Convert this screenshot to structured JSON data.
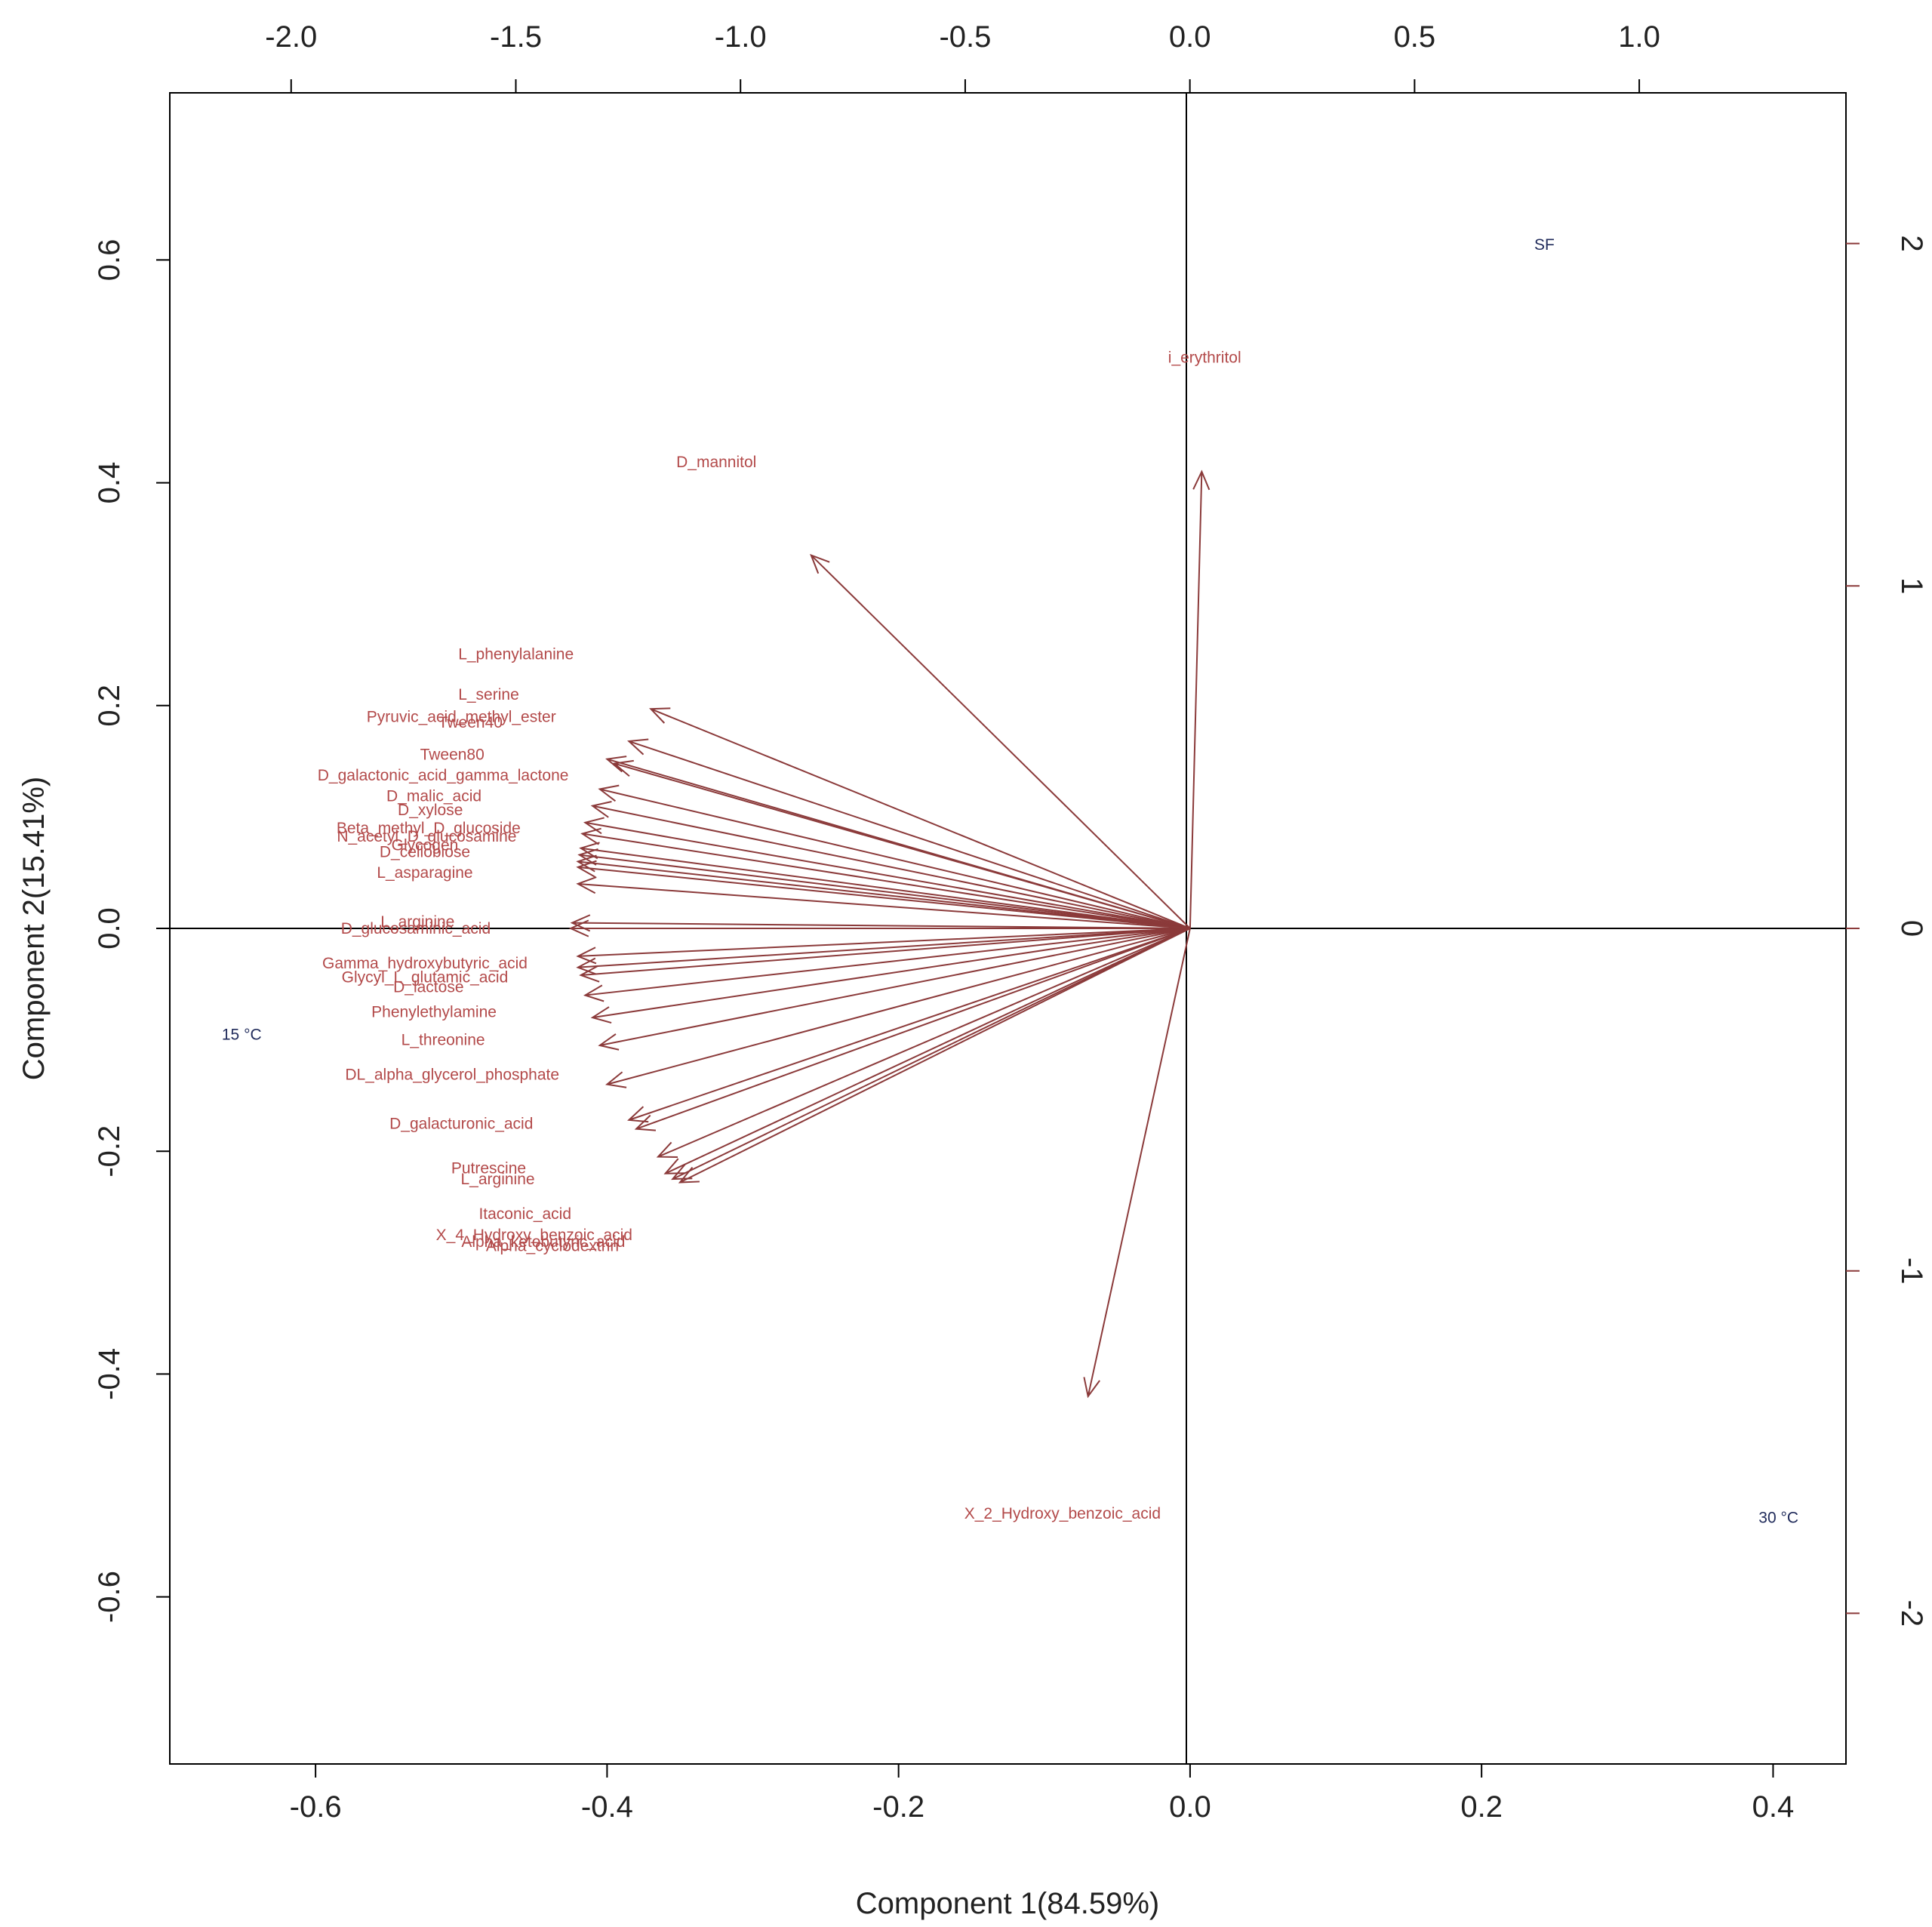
{
  "chart_data": {
    "type": "scatter",
    "subtype": "biplot",
    "xlabel": "Component 1(84.59%)",
    "ylabel": "Component 2(15.41%)",
    "xlim": [
      -0.7,
      0.45
    ],
    "ylim": [
      -0.75,
      0.75
    ],
    "top_lim": [
      -2.27,
      1.46
    ],
    "right_lim": [
      -2.44,
      2.44
    ],
    "x_ticks": [
      "-0.6",
      "-0.4",
      "-0.2",
      "0.0",
      "0.2",
      "0.4"
    ],
    "x_tick_values": [
      -0.6,
      -0.4,
      -0.2,
      0.0,
      0.2,
      0.4
    ],
    "y_ticks": [
      "-0.6",
      "-0.4",
      "-0.2",
      "0.0",
      "0.2",
      "0.4",
      "0.6"
    ],
    "y_tick_values": [
      -0.6,
      -0.4,
      -0.2,
      0.0,
      0.2,
      0.4,
      0.6
    ],
    "top_ticks": [
      "-2.0",
      "-1.5",
      "-1.0",
      "-0.5",
      "0.0",
      "0.5",
      "1.0"
    ],
    "top_tick_values": [
      -2.0,
      -1.5,
      -1.0,
      -0.5,
      0.0,
      0.5,
      1.0
    ],
    "right_ticks": [
      "-2",
      "-1",
      "0",
      "1",
      "2"
    ],
    "right_tick_values": [
      -2,
      -1,
      0,
      1,
      2
    ],
    "observations": [
      {
        "label": "SF",
        "x": 0.789,
        "y": 1.997
      },
      {
        "label": "15 °C",
        "x": -2.11,
        "y": -0.31
      },
      {
        "label": "30 °C",
        "x": 1.31,
        "y": -1.72
      }
    ],
    "variables": [
      {
        "label": "i_erythritol",
        "x": 0.008,
        "y": 0.41
      },
      {
        "label": "D_mannitol",
        "x": -0.26,
        "y": 0.335
      },
      {
        "label": "L_phenylalanine",
        "x": -0.37,
        "y": 0.197
      },
      {
        "label": "L_serine",
        "x": -0.385,
        "y": 0.168
      },
      {
        "label": "Pyruvic_acid_methyl_ester",
        "x": -0.4,
        "y": 0.152
      },
      {
        "label": "Tween40",
        "x": -0.395,
        "y": 0.148
      },
      {
        "label": "Tween80",
        "x": -0.405,
        "y": 0.125
      },
      {
        "label": "D_galactonic_acid_gamma_lactone",
        "x": -0.41,
        "y": 0.11
      },
      {
        "label": "D_malic_acid",
        "x": -0.415,
        "y": 0.095
      },
      {
        "label": "D_xylose",
        "x": -0.417,
        "y": 0.085
      },
      {
        "label": "Beta_methyl_D_glucoside",
        "x": -0.418,
        "y": 0.072
      },
      {
        "label": "N_acetyl_D_glucosamine",
        "x": -0.419,
        "y": 0.066
      },
      {
        "label": "Glycogen",
        "x": -0.42,
        "y": 0.06
      },
      {
        "label": "D_cellobiose",
        "x": -0.42,
        "y": 0.055
      },
      {
        "label": "L_asparagine",
        "x": -0.42,
        "y": 0.04
      },
      {
        "label": "D_glucosaminic_acid",
        "x": -0.425,
        "y": 0.0
      },
      {
        "label": "L_arginine",
        "x": -0.424,
        "y": 0.005
      },
      {
        "label": "Gamma_hydroxybutyric_acid",
        "x": -0.42,
        "y": -0.025
      },
      {
        "label": "Glycyl_L_glutamic_acid",
        "x": -0.42,
        "y": -0.035
      },
      {
        "label": "D_lactose",
        "x": -0.418,
        "y": -0.042
      },
      {
        "label": "Phenylethylamine",
        "x": -0.415,
        "y": -0.06
      },
      {
        "label": "L_threonine",
        "x": -0.41,
        "y": -0.08
      },
      {
        "label": "DL_alpha_glycerol_phosphate",
        "x": -0.405,
        "y": -0.105
      },
      {
        "label": "D_galacturonic_acid",
        "x": -0.4,
        "y": -0.14
      },
      {
        "label": "Putrescine",
        "x": -0.385,
        "y": -0.172
      },
      {
        "label": "L_arginine",
        "x": -0.38,
        "y": -0.18
      },
      {
        "label": "Itaconic_acid",
        "x": -0.365,
        "y": -0.205
      },
      {
        "label": "X_4_Hydroxy_benzoic_acid",
        "x": -0.36,
        "y": -0.22
      },
      {
        "label": "Alpha_ketobutyric_acid",
        "x": -0.355,
        "y": -0.225
      },
      {
        "label": "Alpha_cyclodextrin",
        "x": -0.35,
        "y": -0.228
      },
      {
        "label": "X_2_Hydroxy_benzoic_acid",
        "x": -0.07,
        "y": -0.42
      }
    ]
  }
}
